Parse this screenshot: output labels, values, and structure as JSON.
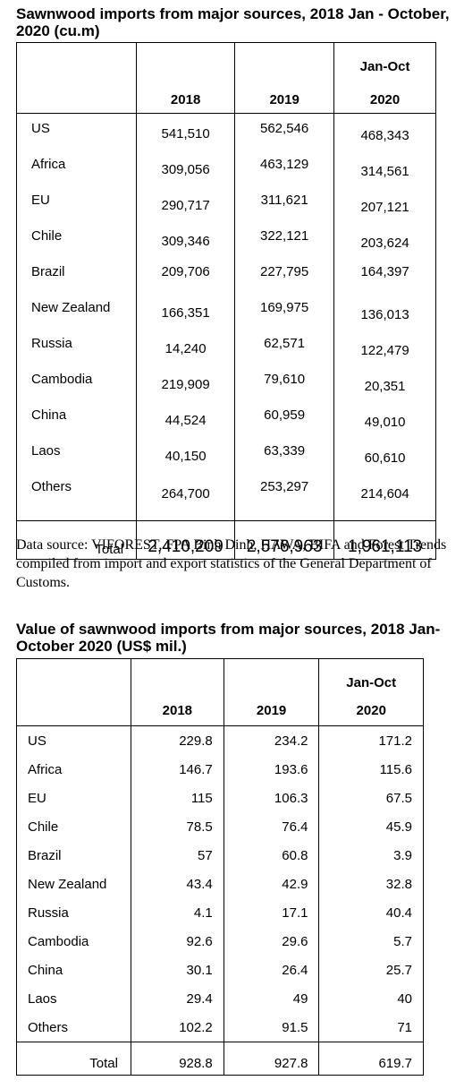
{
  "table1": {
    "title": "Sawnwood imports from major sources, 2018 Jan - October, 2020 (cu.m)",
    "headers": [
      "",
      "2018",
      "2019",
      "Jan-Oct",
      "2020"
    ],
    "rows": [
      {
        "source": "US",
        "y2018": "541,510",
        "y2019": "562,546",
        "y2020": "468,343"
      },
      {
        "source": "Africa",
        "y2018": "309,056",
        "y2019": "463,129",
        "y2020": "314,561"
      },
      {
        "source": "EU",
        "y2018": "290,717",
        "y2019": "311,621",
        "y2020": "207,121"
      },
      {
        "source": "Chile",
        "y2018": "309,346",
        "y2019": "322,121",
        "y2020": "203,624"
      },
      {
        "source": "Brazil",
        "y2018": "209,706",
        "y2019": "227,795",
        "y2020": "164,397"
      },
      {
        "source": "New Zealand",
        "y2018": "166,351",
        "y2019": "169,975",
        "y2020": "136,013"
      },
      {
        "source": "Russia",
        "y2018": "14,240",
        "y2019": "62,571",
        "y2020": "122,479"
      },
      {
        "source": "Cambodia",
        "y2018": "219,909",
        "y2019": "79,610",
        "y2020": "20,351"
      },
      {
        "source": "China",
        "y2018": "44,524",
        "y2019": "60,959",
        "y2020": "49,010"
      },
      {
        "source": "Laos",
        "y2018": "40,150",
        "y2019": "63,339",
        "y2020": "60,610"
      },
      {
        "source": "Others",
        "y2018": "264,700",
        "y2019": "253,297",
        "y2020": "214,604"
      }
    ],
    "total": {
      "label": "Total",
      "y2018": "2,410,209",
      "y2019": "2,576,963",
      "y2020": "1,961,113"
    }
  },
  "source_note": "Data source: VIFOREST, FPA Binh Dinh, HAWA, BIFA and Forest Trends compiled from import and export statistics of the General Department of Customs.",
  "table2": {
    "title": "Value of sawnwood imports from major sources, 2018 Jan-October 2020 (US$ mil.)",
    "headers": [
      "",
      "2018",
      "2019",
      "Jan-Oct",
      "2020"
    ],
    "rows": [
      {
        "source": "US",
        "y2018": "229.8",
        "y2019": "234.2",
        "y2020": "171.2"
      },
      {
        "source": "Africa",
        "y2018": "146.7",
        "y2019": "193.6",
        "y2020": "115.6"
      },
      {
        "source": "EU",
        "y2018": "115",
        "y2019": "106.3",
        "y2020": "67.5"
      },
      {
        "source": "Chile",
        "y2018": "78.5",
        "y2019": "76.4",
        "y2020": "45.9"
      },
      {
        "source": "Brazil",
        "y2018": "57",
        "y2019": "60.8",
        "y2020": "3.9"
      },
      {
        "source": "New Zealand",
        "y2018": "43.4",
        "y2019": "42.9",
        "y2020": "32.8"
      },
      {
        "source": "Russia",
        "y2018": "4.1",
        "y2019": "17.1",
        "y2020": "40.4"
      },
      {
        "source": "Cambodia",
        "y2018": "92.6",
        "y2019": "29.6",
        "y2020": "5.7"
      },
      {
        "source": "China",
        "y2018": "30.1",
        "y2019": "26.4",
        "y2020": "25.7"
      },
      {
        "source": "Laos",
        "y2018": "29.4",
        "y2019": "49",
        "y2020": "40"
      },
      {
        "source": "Others",
        "y2018": "102.2",
        "y2019": "91.5",
        "y2020": "71"
      }
    ],
    "total": {
      "label": "Total",
      "y2018": "928.8",
      "y2019": "927.8",
      "y2020": "619.7"
    }
  }
}
